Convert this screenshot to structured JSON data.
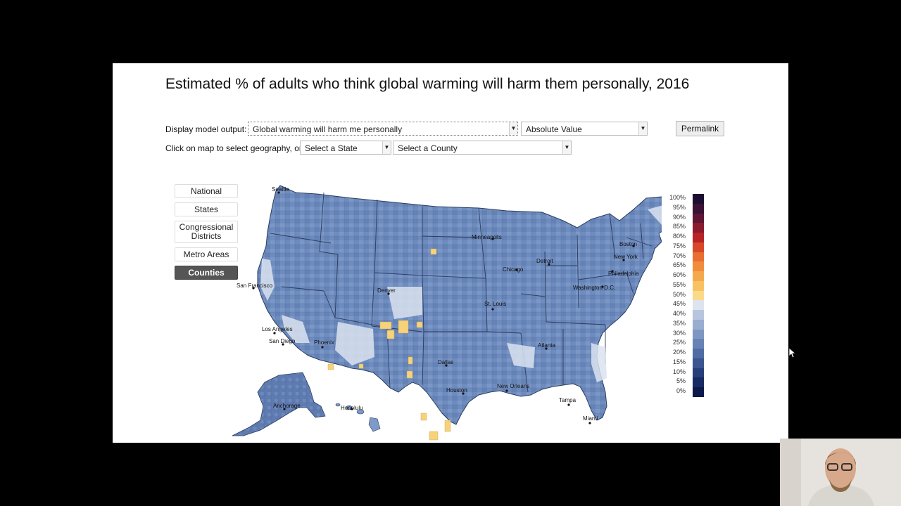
{
  "title": "Estimated % of adults who think global warming will harm them personally, 2016",
  "controls": {
    "display_label": "Display model output:",
    "model_output_value": "Global warming will harm me personally",
    "value_type": "Absolute Value",
    "permalink": "Permalink",
    "geo_label": "Click on map to select geography, or:",
    "state_select": "Select a State",
    "county_select": "Select a County"
  },
  "geography_buttons": {
    "national": "National",
    "states": "States",
    "congressional": "Congressional Districts",
    "metro": "Metro Areas",
    "counties": "Counties"
  },
  "selected_geography": "Counties",
  "cities": {
    "seattle": "Seattle",
    "minneapolis": "Minneapolis",
    "boston": "Boston",
    "chicago": "Chicago",
    "detroit": "Detroit",
    "new_york": "New York",
    "philadelphia": "Philadelphia",
    "washington": "Washington D.C.",
    "san_francisco": "San Francisco",
    "denver": "Denver",
    "st_louis": "St. Louis",
    "los_angeles": "Los Angeles",
    "san_diego": "San Diego",
    "phoenix": "Phoenix",
    "atlanta": "Atlanta",
    "dallas": "Dallas",
    "houston": "Houston",
    "new_orleans": "New Orleans",
    "tampa": "Tampa",
    "miami": "Miami",
    "anchorage": "Anchorage",
    "honolulu": "Honolulu"
  },
  "legend": [
    {
      "label": "100%",
      "color": "#1e0d33"
    },
    {
      "label": "95%",
      "color": "#3a1236"
    },
    {
      "label": "90%",
      "color": "#5e1536"
    },
    {
      "label": "85%",
      "color": "#8a1b2e"
    },
    {
      "label": "80%",
      "color": "#b82326"
    },
    {
      "label": "75%",
      "color": "#d9472a"
    },
    {
      "label": "70%",
      "color": "#e96e31"
    },
    {
      "label": "65%",
      "color": "#f08d3d"
    },
    {
      "label": "60%",
      "color": "#f5a94f"
    },
    {
      "label": "55%",
      "color": "#f8c264"
    },
    {
      "label": "50%",
      "color": "#fbd98a"
    },
    {
      "label": "45%",
      "color": "#dde4ef"
    },
    {
      "label": "40%",
      "color": "#b7c6de"
    },
    {
      "label": "35%",
      "color": "#98add0"
    },
    {
      "label": "30%",
      "color": "#7e97c2"
    },
    {
      "label": "25%",
      "color": "#6783b5"
    },
    {
      "label": "20%",
      "color": "#4f6ca3"
    },
    {
      "label": "15%",
      "color": "#3a5590"
    },
    {
      "label": "10%",
      "color": "#263f7a"
    },
    {
      "label": "5%",
      "color": "#172a62"
    },
    {
      "label": "0%",
      "color": "#0b1a4a"
    }
  ],
  "colors": {
    "map_base": "#6f8cbf",
    "map_border": "#2a3d5e",
    "highlight_yellow": "#f6d27a",
    "light_county": "#dbe3f0"
  }
}
